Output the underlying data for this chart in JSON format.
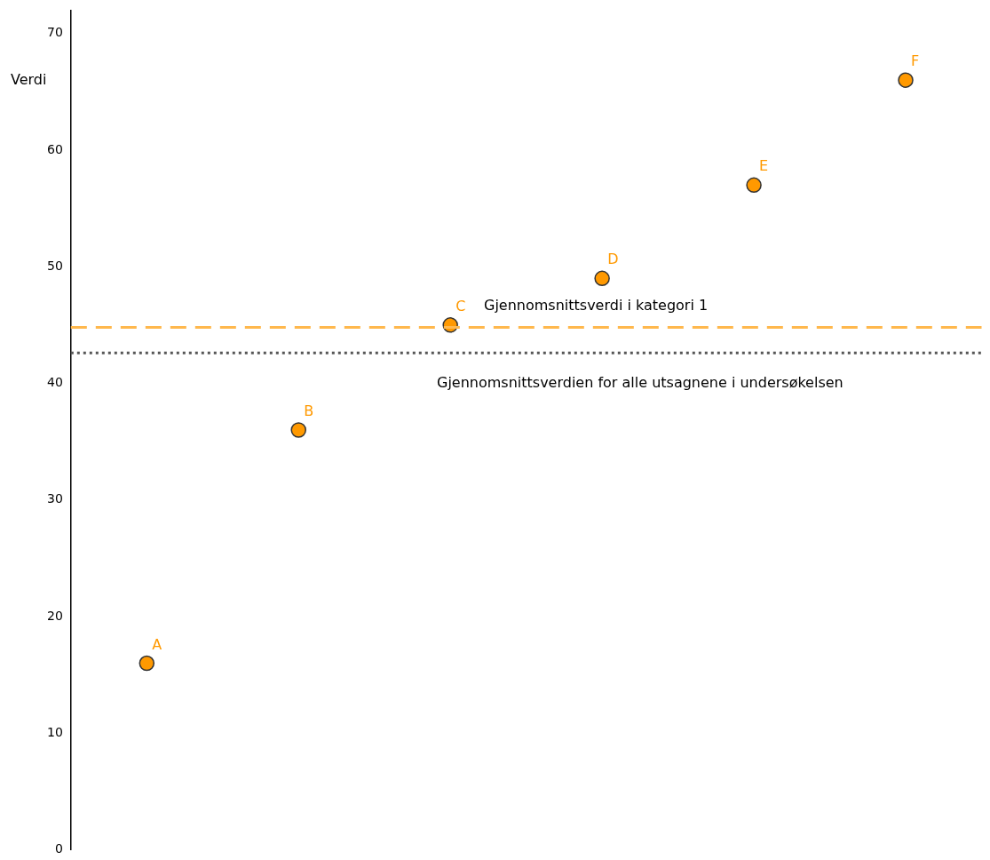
{
  "chart_data": {
    "type": "scatter",
    "ylabel": "Verdi",
    "categories": [
      null,
      null,
      null,
      null,
      null,
      null
    ],
    "series": [
      {
        "color": "#ff9900",
        "values": [
          16,
          36,
          45,
          49,
          57,
          66
        ],
        "value_labels": [
          "A",
          "B",
          "C",
          "D",
          "E",
          "F"
        ]
      }
    ],
    "ylim": [
      0,
      72
    ],
    "yticks": [
      0,
      10,
      20,
      30,
      40,
      50,
      60,
      70
    ],
    "grid": false,
    "legend": false,
    "marker": "circle",
    "tick_labels": "y",
    "ref_lines": [
      {
        "axis": "y",
        "value": 44.8,
        "label": "Gjennomsnittsverdi i kategori 1",
        "color": "#ffb84d",
        "line_style": "dashed"
      },
      {
        "axis": "y",
        "value": 42.6,
        "label": "Gjennomsnittsverdien for alle utsagnene i undersøkelsen",
        "color": "#555555",
        "line_style": "dotted"
      }
    ]
  }
}
